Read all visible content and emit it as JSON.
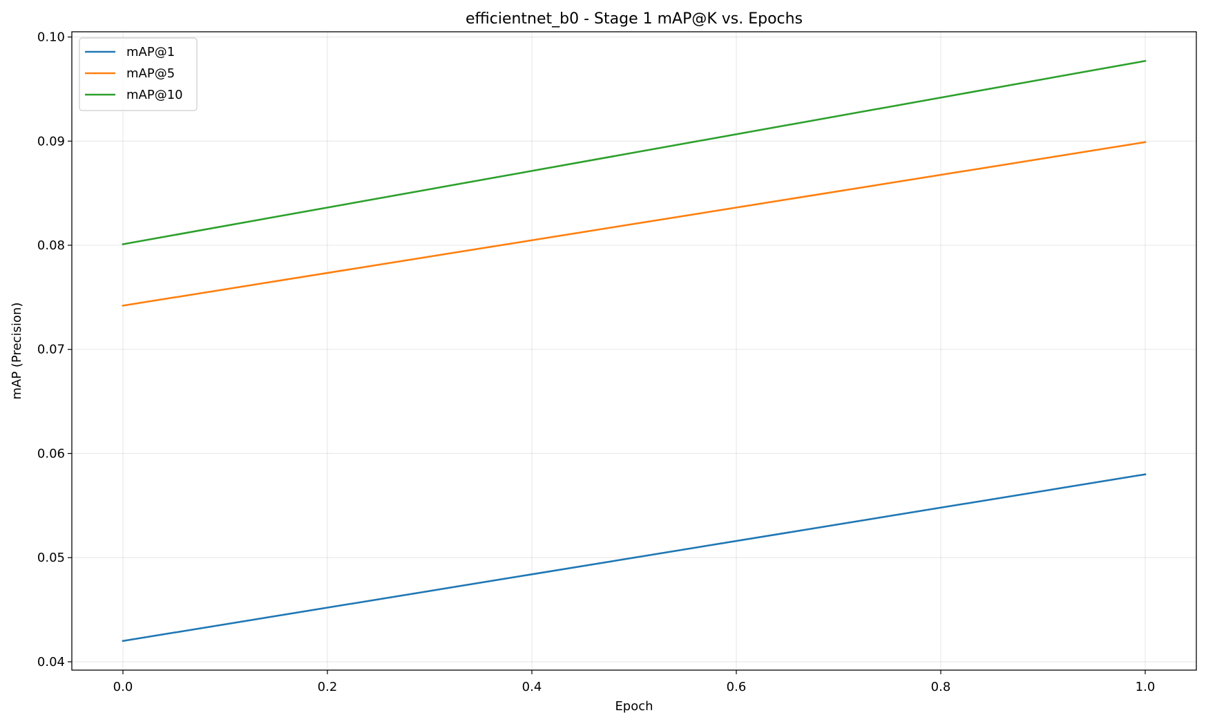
{
  "chart_data": {
    "type": "line",
    "title": "efficientnet_b0 - Stage 1 mAP@K vs. Epochs",
    "xlabel": "Epoch",
    "ylabel": "mAP (Precision)",
    "x": [
      0,
      1
    ],
    "series": [
      {
        "name": "mAP@1",
        "values": [
          0.042,
          0.058
        ],
        "color": "#1f77b4"
      },
      {
        "name": "mAP@5",
        "values": [
          0.0742,
          0.0899
        ],
        "color": "#ff7f0e"
      },
      {
        "name": "mAP@10",
        "values": [
          0.0801,
          0.0977
        ],
        "color": "#2ca02c"
      }
    ],
    "xlim": [
      -0.05,
      1.05
    ],
    "ylim": [
      0.0392,
      0.1005
    ],
    "xticks": [
      0.0,
      0.2,
      0.4,
      0.6,
      0.8,
      1.0
    ],
    "xtick_labels": [
      "0.0",
      "0.2",
      "0.4",
      "0.6",
      "0.8",
      "1.0"
    ],
    "yticks": [
      0.04,
      0.05,
      0.06,
      0.07,
      0.08,
      0.09,
      0.1
    ],
    "ytick_labels": [
      "0.04",
      "0.05",
      "0.06",
      "0.07",
      "0.08",
      "0.09",
      "0.10"
    ],
    "grid": true,
    "legend_position": "top-left"
  }
}
